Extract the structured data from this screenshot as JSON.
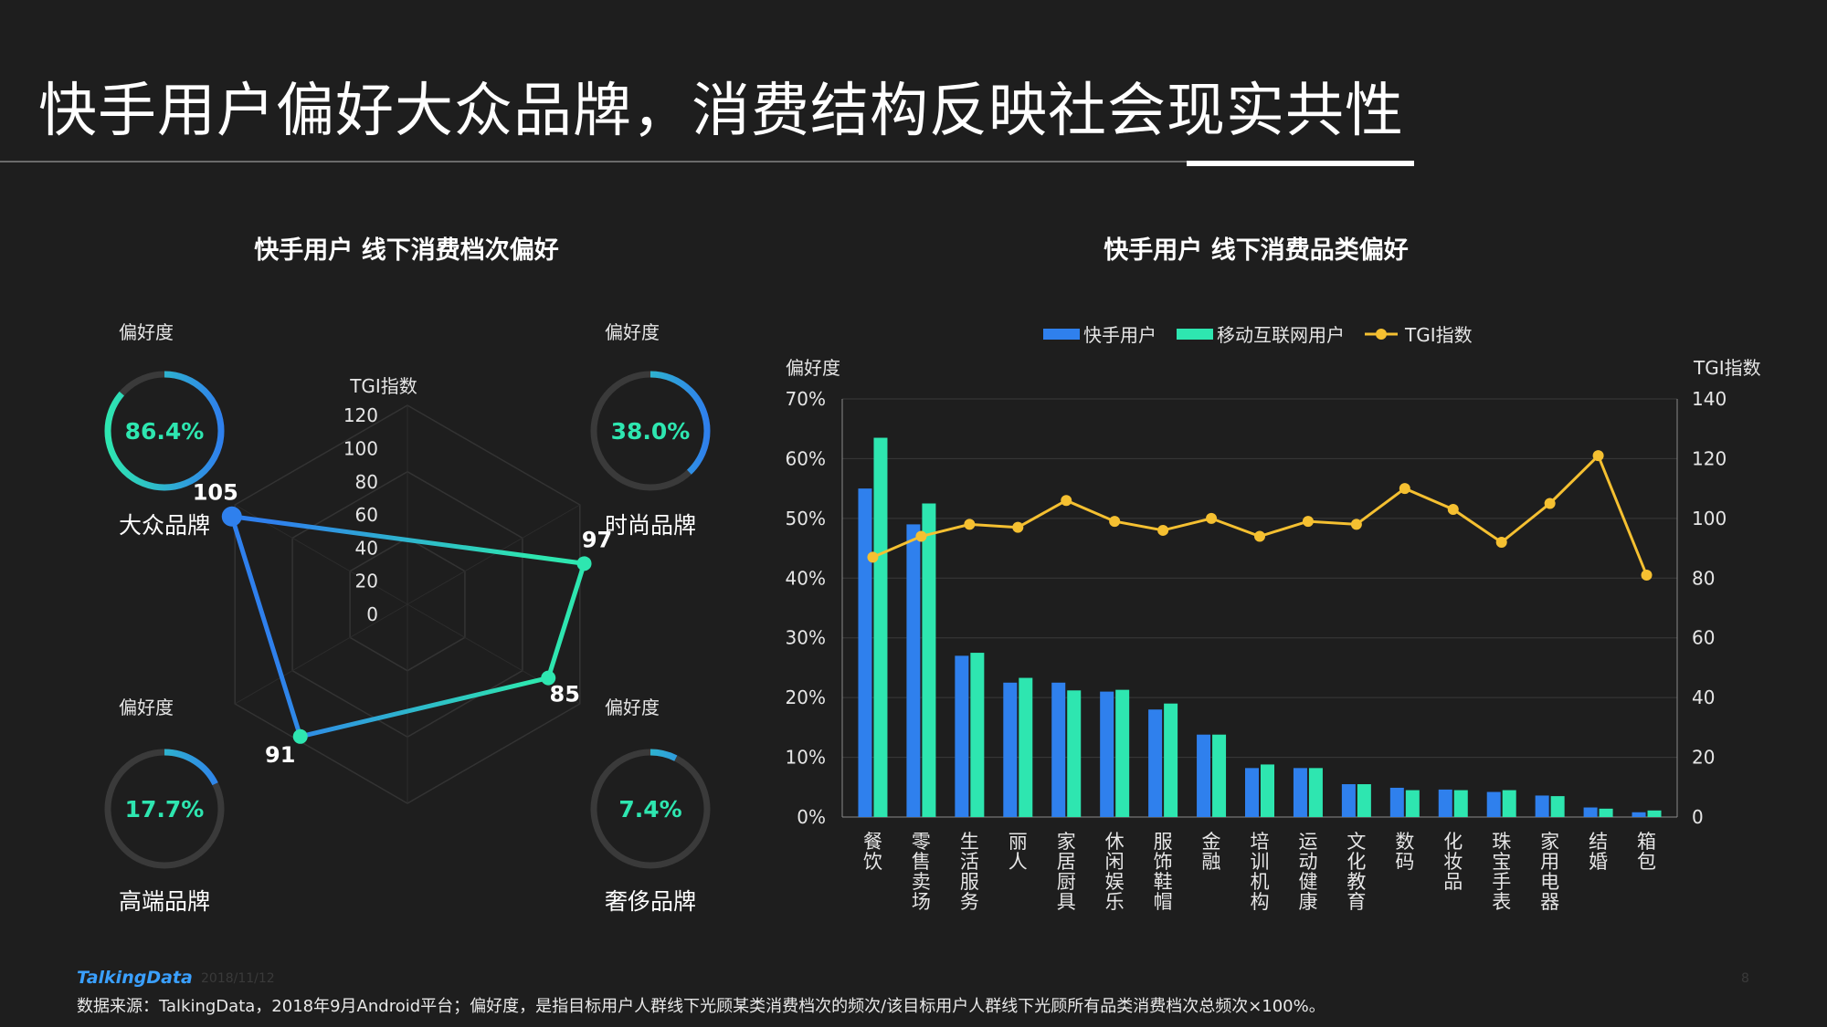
{
  "page_title": "快手用户偏好大众品牌，消费结构反映社会现实共性",
  "colors": {
    "background": "#1e1e1e",
    "kuaishou_blue": "#2f80ed",
    "mobile_green": "#2ee6b0",
    "tgi_yellow": "#f5c031",
    "ring_track": "#3a3a3a",
    "ring_text": "#2ee6b0"
  },
  "left_section": {
    "title": "快手用户  线下消费档次偏好",
    "tgi_label": "TGI指数",
    "rings": [
      {
        "top_label": "偏好度",
        "value_text": "86.4%",
        "value": 0.864,
        "name": "大众品牌"
      },
      {
        "top_label": "偏好度",
        "value_text": "38.0%",
        "value": 0.38,
        "name": "时尚品牌"
      },
      {
        "top_label": "偏好度",
        "value_text": "17.7%",
        "value": 0.177,
        "name": "高端品牌"
      },
      {
        "top_label": "偏好度",
        "value_text": "7.4%",
        "value": 0.074,
        "name": "奢侈品牌"
      }
    ]
  },
  "right_section": {
    "title": "快手用户  线下消费品类偏好",
    "legend": [
      "快手用户",
      "移动互联网用户",
      "TGI指数"
    ]
  },
  "footer": {
    "logo": "TalkingData",
    "date": "2018/11/12",
    "page": "8",
    "source": "数据来源：TalkingData，2018年9月Android平台；偏好度，是指目标用户人群线下光顾某类消费档次的频次/该目标用户人群线下光顾所有品类消费档次总频次×100%。"
  },
  "chart_data": [
    {
      "type": "radar",
      "title": "快手用户  线下消费档次偏好",
      "axis_label": "TGI指数",
      "ticks": [
        0,
        20,
        40,
        60,
        80,
        100,
        120
      ],
      "range": [
        0,
        120
      ],
      "categories": [
        "大众品牌",
        "时尚品牌",
        "奢侈品牌",
        "高端品牌"
      ],
      "values": [
        105,
        97,
        85,
        91
      ]
    },
    {
      "type": "bar",
      "title": "快手用户  线下消费品类偏好",
      "ylabel": "偏好度",
      "y2label": "TGI指数",
      "ylim": [
        0,
        70
      ],
      "y_ticks": [
        "0%",
        "10%",
        "20%",
        "30%",
        "40%",
        "50%",
        "60%",
        "70%"
      ],
      "y2lim": [
        0,
        140
      ],
      "y2_ticks": [
        0,
        20,
        40,
        60,
        80,
        100,
        120,
        140
      ],
      "grid": true,
      "legend_position": "top",
      "categories": [
        "餐饮",
        "零售卖场",
        "生活服务",
        "丽人",
        "家居厨具",
        "休闲娱乐",
        "服饰鞋帽",
        "金融",
        "培训机构",
        "运动健康",
        "文化教育",
        "数码",
        "化妆品",
        "珠宝手表",
        "家用电器",
        "结婚",
        "箱包"
      ],
      "series": [
        {
          "name": "快手用户",
          "values": [
            55,
            49,
            27,
            22.5,
            22.5,
            21,
            18,
            13.8,
            8.2,
            8.2,
            5.5,
            4.9,
            4.6,
            4.2,
            3.6,
            1.6,
            0.8
          ]
        },
        {
          "name": "移动互联网用户",
          "values": [
            63.5,
            52.5,
            27.5,
            23.3,
            21.2,
            21.3,
            19,
            13.8,
            8.8,
            8.2,
            5.5,
            4.5,
            4.5,
            4.5,
            3.5,
            1.4,
            1.1
          ]
        },
        {
          "name": "TGI指数",
          "axis": "y2",
          "values": [
            87,
            94,
            98,
            97,
            106,
            99,
            96,
            100,
            94,
            99,
            98,
            110,
            103,
            92,
            105,
            121,
            81
          ]
        }
      ]
    }
  ]
}
